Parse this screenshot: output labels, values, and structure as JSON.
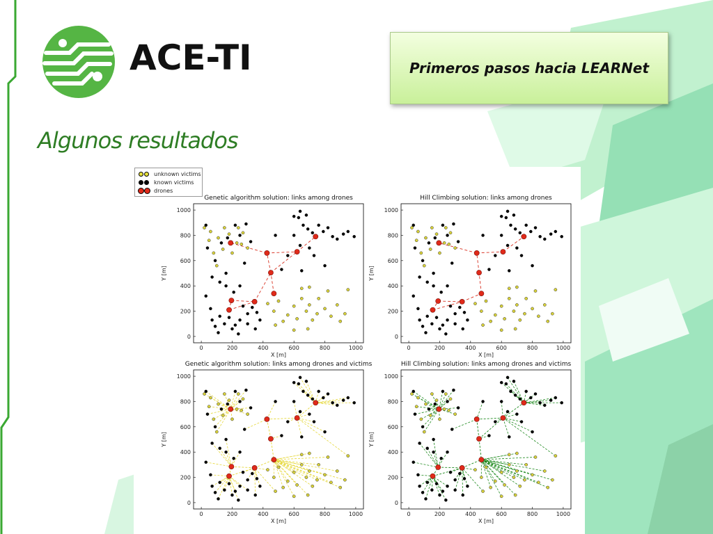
{
  "brand": {
    "name": "ACE-TI",
    "logo_icon": "circuit-logo-icon"
  },
  "header": {
    "title": "Primeros pasos hacia LEARNet"
  },
  "slide": {
    "subtitle": "Algunos resultados"
  },
  "legend": {
    "items": [
      {
        "label": "unknown victims",
        "color": "#e8e23a"
      },
      {
        "label": "known victims",
        "color": "#000000"
      },
      {
        "label": "drones",
        "color": "#e02a1a"
      }
    ]
  },
  "colors": {
    "accent_green": "#2e7d24",
    "drone_red": "#e02a1a",
    "victim_yellow": "#d9d23a",
    "link_red": "#d83020",
    "link_yellow": "#e6d83a",
    "link_green": "#1e8a1e"
  },
  "chart_data": [
    {
      "type": "scatter",
      "title": "Genetic algorithm solution: links among drones",
      "xlabel": "X [m]",
      "ylabel": "Y [m]",
      "xlim": [
        -50,
        1050
      ],
      "ylim": [
        -50,
        1050
      ],
      "xticks": [
        0,
        200,
        400,
        600,
        800,
        1000
      ],
      "yticks": [
        0,
        200,
        400,
        600,
        800,
        1000
      ],
      "links": "drones",
      "drones": [
        [
          180,
          210
        ],
        [
          195,
          285
        ],
        [
          190,
          740
        ],
        [
          345,
          275
        ],
        [
          425,
          660
        ],
        [
          450,
          505
        ],
        [
          470,
          340
        ],
        [
          620,
          670
        ],
        [
          740,
          790
        ]
      ],
      "drone_links": [
        [
          0,
          1
        ],
        [
          1,
          3
        ],
        [
          0,
          3
        ],
        [
          3,
          5
        ],
        [
          6,
          5
        ],
        [
          5,
          4
        ],
        [
          4,
          7
        ],
        [
          7,
          8
        ],
        [
          4,
          2
        ],
        [
          5,
          7
        ]
      ]
    },
    {
      "type": "scatter",
      "title": "Hill Climbing solution: links among drones",
      "xlabel": "X [m]",
      "ylabel": "Y [m]",
      "xlim": [
        -50,
        1050
      ],
      "ylim": [
        -50,
        1050
      ],
      "xticks": [
        0,
        200,
        400,
        600,
        800,
        1000
      ],
      "yticks": [
        0,
        200,
        400,
        600,
        800,
        1000
      ],
      "links": "drones",
      "drones": [
        [
          155,
          210
        ],
        [
          190,
          280
        ],
        [
          195,
          740
        ],
        [
          345,
          275
        ],
        [
          440,
          660
        ],
        [
          455,
          505
        ],
        [
          470,
          340
        ],
        [
          610,
          670
        ],
        [
          745,
          790
        ]
      ],
      "drone_links": [
        [
          0,
          1
        ],
        [
          1,
          3
        ],
        [
          0,
          3
        ],
        [
          3,
          6
        ],
        [
          6,
          5
        ],
        [
          5,
          4
        ],
        [
          4,
          7
        ],
        [
          7,
          8
        ],
        [
          4,
          2
        ]
      ]
    },
    {
      "type": "scatter",
      "title": "Genetic algorithm solution: links among drones and victims",
      "xlabel": "X [m]",
      "ylabel": "Y [m]",
      "xlim": [
        -50,
        1050
      ],
      "ylim": [
        -50,
        1050
      ],
      "xticks": [
        0,
        200,
        400,
        600,
        800,
        1000
      ],
      "yticks": [
        0,
        200,
        400,
        600,
        800,
        1000
      ],
      "links": "victims-yellow",
      "drones": [
        [
          180,
          210
        ],
        [
          195,
          285
        ],
        [
          190,
          740
        ],
        [
          345,
          275
        ],
        [
          425,
          660
        ],
        [
          450,
          505
        ],
        [
          470,
          340
        ],
        [
          620,
          670
        ],
        [
          740,
          790
        ]
      ],
      "drone_links": []
    },
    {
      "type": "scatter",
      "title": "Hill Climbing solution: links among drones and victims",
      "xlabel": "X [m]",
      "ylabel": "Y [m]",
      "xlim": [
        -50,
        1050
      ],
      "ylim": [
        -50,
        1050
      ],
      "xticks": [
        0,
        200,
        400,
        600,
        800,
        1000
      ],
      "yticks": [
        0,
        200,
        400,
        600,
        800,
        1000
      ],
      "links": "victims-green",
      "drones": [
        [
          155,
          210
        ],
        [
          190,
          280
        ],
        [
          195,
          740
        ],
        [
          345,
          275
        ],
        [
          440,
          660
        ],
        [
          455,
          505
        ],
        [
          470,
          340
        ],
        [
          610,
          670
        ],
        [
          745,
          790
        ]
      ],
      "drone_links": []
    }
  ],
  "victims": {
    "unknown": [
      [
        20,
        860
      ],
      [
        60,
        830
      ],
      [
        110,
        780
      ],
      [
        150,
        860
      ],
      [
        180,
        810
      ],
      [
        230,
        740
      ],
      [
        260,
        730
      ],
      [
        80,
        660
      ],
      [
        140,
        690
      ],
      [
        200,
        660
      ],
      [
        100,
        560
      ],
      [
        300,
        700
      ],
      [
        270,
        820
      ],
      [
        240,
        860
      ],
      [
        50,
        760
      ],
      [
        430,
        260
      ],
      [
        470,
        200
      ],
      [
        500,
        280
      ],
      [
        530,
        120
      ],
      [
        560,
        170
      ],
      [
        600,
        240
      ],
      [
        620,
        140
      ],
      [
        650,
        300
      ],
      [
        680,
        200
      ],
      [
        700,
        250
      ],
      [
        720,
        130
      ],
      [
        750,
        180
      ],
      [
        760,
        300
      ],
      [
        800,
        220
      ],
      [
        840,
        160
      ],
      [
        880,
        250
      ],
      [
        900,
        120
      ],
      [
        930,
        180
      ],
      [
        950,
        370
      ],
      [
        650,
        380
      ],
      [
        700,
        390
      ],
      [
        820,
        360
      ],
      [
        600,
        50
      ],
      [
        690,
        60
      ],
      [
        480,
        90
      ]
    ],
    "known": [
      [
        30,
        880
      ],
      [
        40,
        700
      ],
      [
        90,
        600
      ],
      [
        130,
        740
      ],
      [
        170,
        780
      ],
      [
        220,
        880
      ],
      [
        250,
        800
      ],
      [
        290,
        890
      ],
      [
        320,
        750
      ],
      [
        280,
        580
      ],
      [
        70,
        470
      ],
      [
        120,
        430
      ],
      [
        160,
        500
      ],
      [
        210,
        350
      ],
      [
        250,
        400
      ],
      [
        270,
        240
      ],
      [
        300,
        180
      ],
      [
        330,
        230
      ],
      [
        360,
        190
      ],
      [
        380,
        130
      ],
      [
        70,
        130
      ],
      [
        90,
        80
      ],
      [
        120,
        160
      ],
      [
        150,
        100
      ],
      [
        180,
        150
      ],
      [
        220,
        90
      ],
      [
        250,
        130
      ],
      [
        110,
        30
      ],
      [
        60,
        220
      ],
      [
        30,
        320
      ],
      [
        200,
        60
      ],
      [
        240,
        20
      ],
      [
        300,
        100
      ],
      [
        350,
        60
      ],
      [
        160,
        400
      ],
      [
        600,
        800
      ],
      [
        630,
        940
      ],
      [
        660,
        880
      ],
      [
        690,
        850
      ],
      [
        720,
        820
      ],
      [
        760,
        880
      ],
      [
        790,
        830
      ],
      [
        820,
        860
      ],
      [
        850,
        790
      ],
      [
        880,
        770
      ],
      [
        920,
        810
      ],
      [
        950,
        830
      ],
      [
        990,
        790
      ],
      [
        640,
        720
      ],
      [
        700,
        700
      ],
      [
        730,
        640
      ],
      [
        650,
        520
      ],
      [
        560,
        640
      ],
      [
        520,
        530
      ],
      [
        480,
        800
      ],
      [
        800,
        560
      ],
      [
        600,
        950
      ],
      [
        640,
        990
      ],
      [
        680,
        960
      ]
    ]
  }
}
